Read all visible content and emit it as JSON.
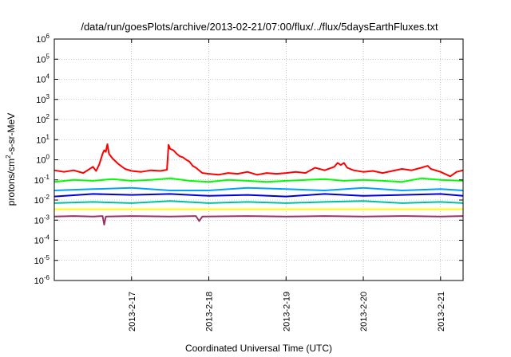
{
  "chart_data": {
    "type": "line",
    "title": "/data/run/goesPlots/archive/2013-02-21/07:00/flux/../flux/5daysEarthFluxes.txt",
    "xlabel": "Coordinated Universal Time (UTC)",
    "ylabel": {
      "pre": "protons/cm",
      "sup": "2",
      "post": "-s-sr-MeV"
    },
    "y_scale": "log",
    "ylim": [
      1e-06,
      1000000.0
    ],
    "y_ticks": [
      {
        "value": 1e-06,
        "base": "10",
        "exp": "-6"
      },
      {
        "value": 1e-05,
        "base": "10",
        "exp": "-5"
      },
      {
        "value": 0.0001,
        "base": "10",
        "exp": "-4"
      },
      {
        "value": 0.001,
        "base": "10",
        "exp": "-3"
      },
      {
        "value": 0.01,
        "base": "10",
        "exp": "-2"
      },
      {
        "value": 0.1,
        "base": "10",
        "exp": "-1"
      },
      {
        "value": 1.0,
        "base": "10",
        "exp": "0"
      },
      {
        "value": 10.0,
        "base": "10",
        "exp": "1"
      },
      {
        "value": 100.0,
        "base": "10",
        "exp": "2"
      },
      {
        "value": 1000.0,
        "base": "10",
        "exp": "3"
      },
      {
        "value": 10000.0,
        "base": "10",
        "exp": "4"
      },
      {
        "value": 100000.0,
        "base": "10",
        "exp": "5"
      },
      {
        "value": 1000000.0,
        "base": "10",
        "exp": "6"
      }
    ],
    "xlim": [
      "2013-02-16T00:00",
      "2013-02-21T07:00"
    ],
    "x_ticks": [
      {
        "value": "2013-02-17T00:00",
        "label": "2013-2-17"
      },
      {
        "value": "2013-02-18T00:00",
        "label": "2013-2-18"
      },
      {
        "value": "2013-02-19T00:00",
        "label": "2013-2-19"
      },
      {
        "value": "2013-02-20T00:00",
        "label": "2013-2-20"
      },
      {
        "value": "2013-02-21T00:00",
        "label": "2013-2-21"
      }
    ],
    "grid": true,
    "series": [
      {
        "color": "#ff0000",
        "values": [
          [
            "2013-02-16T00:00",
            0.3
          ],
          [
            "2013-02-16T03:00",
            0.25
          ],
          [
            "2013-02-16T06:00",
            0.3
          ],
          [
            "2013-02-16T09:00",
            0.22
          ],
          [
            "2013-02-16T12:00",
            0.45
          ],
          [
            "2013-02-16T13:00",
            0.28
          ],
          [
            "2013-02-16T14:00",
            0.6
          ],
          [
            "2013-02-16T15:00",
            2.0
          ],
          [
            "2013-02-16T15:30",
            3.0
          ],
          [
            "2013-02-16T16:00",
            2.5
          ],
          [
            "2013-02-16T16:30",
            6.0
          ],
          [
            "2013-02-16T17:00",
            2.0
          ],
          [
            "2013-02-16T18:00",
            1.2
          ],
          [
            "2013-02-16T20:00",
            0.6
          ],
          [
            "2013-02-16T22:00",
            0.35
          ],
          [
            "2013-02-17T00:00",
            0.28
          ],
          [
            "2013-02-17T03:00",
            0.25
          ],
          [
            "2013-02-17T06:00",
            0.3
          ],
          [
            "2013-02-17T09:00",
            0.28
          ],
          [
            "2013-02-17T11:00",
            0.32
          ],
          [
            "2013-02-17T11:30",
            5.5
          ],
          [
            "2013-02-17T12:00",
            3.5
          ],
          [
            "2013-02-17T13:00",
            3.0
          ],
          [
            "2013-02-17T14:00",
            2.0
          ],
          [
            "2013-02-17T15:00",
            1.5
          ],
          [
            "2013-02-17T16:00",
            1.3
          ],
          [
            "2013-02-17T17:00",
            1.0
          ],
          [
            "2013-02-17T18:00",
            0.8
          ],
          [
            "2013-02-17T19:00",
            0.5
          ],
          [
            "2013-02-17T20:00",
            0.4
          ],
          [
            "2013-02-17T22:00",
            0.22
          ],
          [
            "2013-02-18T00:00",
            0.2
          ],
          [
            "2013-02-18T03:00",
            0.18
          ],
          [
            "2013-02-18T06:00",
            0.22
          ],
          [
            "2013-02-18T09:00",
            0.2
          ],
          [
            "2013-02-18T12:00",
            0.25
          ],
          [
            "2013-02-18T15:00",
            0.18
          ],
          [
            "2013-02-18T18:00",
            0.22
          ],
          [
            "2013-02-18T21:00",
            0.2
          ],
          [
            "2013-02-19T00:00",
            0.22
          ],
          [
            "2013-02-19T03:00",
            0.25
          ],
          [
            "2013-02-19T06:00",
            0.22
          ],
          [
            "2013-02-19T09:00",
            0.4
          ],
          [
            "2013-02-19T12:00",
            0.3
          ],
          [
            "2013-02-19T15:00",
            0.45
          ],
          [
            "2013-02-19T16:00",
            0.7
          ],
          [
            "2013-02-19T17:00",
            0.55
          ],
          [
            "2013-02-19T18:00",
            0.7
          ],
          [
            "2013-02-19T19:00",
            0.4
          ],
          [
            "2013-02-19T21:00",
            0.3
          ],
          [
            "2013-02-20T00:00",
            0.25
          ],
          [
            "2013-02-20T03:00",
            0.28
          ],
          [
            "2013-02-20T06:00",
            0.22
          ],
          [
            "2013-02-20T09:00",
            0.28
          ],
          [
            "2013-02-20T12:00",
            0.35
          ],
          [
            "2013-02-20T15:00",
            0.3
          ],
          [
            "2013-02-20T18:00",
            0.4
          ],
          [
            "2013-02-20T20:00",
            0.5
          ],
          [
            "2013-02-20T21:00",
            0.35
          ],
          [
            "2013-02-21T00:00",
            0.25
          ],
          [
            "2013-02-21T03:00",
            0.15
          ],
          [
            "2013-02-21T05:00",
            0.25
          ],
          [
            "2013-02-21T07:00",
            0.3
          ]
        ]
      },
      {
        "color": "#00ff00",
        "values": [
          [
            "2013-02-16T00:00",
            0.08
          ],
          [
            "2013-02-16T06:00",
            0.1
          ],
          [
            "2013-02-16T12:00",
            0.09
          ],
          [
            "2013-02-16T18:00",
            0.11
          ],
          [
            "2013-02-17T00:00",
            0.09
          ],
          [
            "2013-02-17T06:00",
            0.1
          ],
          [
            "2013-02-17T12:00",
            0.12
          ],
          [
            "2013-02-17T18:00",
            0.09
          ],
          [
            "2013-02-18T00:00",
            0.08
          ],
          [
            "2013-02-18T06:00",
            0.1
          ],
          [
            "2013-02-18T12:00",
            0.09
          ],
          [
            "2013-02-18T18:00",
            0.08
          ],
          [
            "2013-02-19T00:00",
            0.09
          ],
          [
            "2013-02-19T06:00",
            0.1
          ],
          [
            "2013-02-19T12:00",
            0.11
          ],
          [
            "2013-02-19T18:00",
            0.09
          ],
          [
            "2013-02-20T00:00",
            0.1
          ],
          [
            "2013-02-20T06:00",
            0.09
          ],
          [
            "2013-02-20T12:00",
            0.08
          ],
          [
            "2013-02-20T18:00",
            0.12
          ],
          [
            "2013-02-21T00:00",
            0.1
          ],
          [
            "2013-02-21T07:00",
            0.09
          ]
        ]
      },
      {
        "color": "#00a0ff",
        "values": [
          [
            "2013-02-16T00:00",
            0.03
          ],
          [
            "2013-02-16T12:00",
            0.035
          ],
          [
            "2013-02-17T00:00",
            0.04
          ],
          [
            "2013-02-17T12:00",
            0.03
          ],
          [
            "2013-02-18T00:00",
            0.03
          ],
          [
            "2013-02-18T12:00",
            0.04
          ],
          [
            "2013-02-19T00:00",
            0.035
          ],
          [
            "2013-02-19T12:00",
            0.03
          ],
          [
            "2013-02-20T00:00",
            0.04
          ],
          [
            "2013-02-20T12:00",
            0.03
          ],
          [
            "2013-02-21T00:00",
            0.035
          ],
          [
            "2013-02-21T07:00",
            0.03
          ]
        ]
      },
      {
        "color": "#0000dd",
        "values": [
          [
            "2013-02-16T00:00",
            0.015
          ],
          [
            "2013-02-16T12:00",
            0.02
          ],
          [
            "2013-02-17T00:00",
            0.018
          ],
          [
            "2013-02-17T12:00",
            0.02
          ],
          [
            "2013-02-18T00:00",
            0.016
          ],
          [
            "2013-02-18T12:00",
            0.018
          ],
          [
            "2013-02-19T00:00",
            0.015
          ],
          [
            "2013-02-19T12:00",
            0.02
          ],
          [
            "2013-02-20T00:00",
            0.016
          ],
          [
            "2013-02-20T12:00",
            0.018
          ],
          [
            "2013-02-21T00:00",
            0.02
          ],
          [
            "2013-02-21T07:00",
            0.016
          ]
        ]
      },
      {
        "color": "#00c0a0",
        "values": [
          [
            "2013-02-16T00:00",
            0.007
          ],
          [
            "2013-02-16T12:00",
            0.008
          ],
          [
            "2013-02-17T00:00",
            0.007
          ],
          [
            "2013-02-17T12:00",
            0.009
          ],
          [
            "2013-02-18T00:00",
            0.007
          ],
          [
            "2013-02-18T12:00",
            0.008
          ],
          [
            "2013-02-19T00:00",
            0.007
          ],
          [
            "2013-02-19T12:00",
            0.008
          ],
          [
            "2013-02-20T00:00",
            0.009
          ],
          [
            "2013-02-20T12:00",
            0.007
          ],
          [
            "2013-02-21T00:00",
            0.008
          ],
          [
            "2013-02-21T07:00",
            0.007
          ]
        ]
      },
      {
        "color": "#ffff00",
        "values": [
          [
            "2013-02-16T00:00",
            0.0035
          ],
          [
            "2013-02-17T00:00",
            0.0035
          ],
          [
            "2013-02-18T00:00",
            0.0035
          ],
          [
            "2013-02-19T00:00",
            0.0035
          ],
          [
            "2013-02-20T00:00",
            0.0035
          ],
          [
            "2013-02-21T00:00",
            0.0035
          ],
          [
            "2013-02-21T07:00",
            0.0035
          ]
        ]
      },
      {
        "color": "#993366",
        "values": [
          [
            "2013-02-16T00:00",
            0.0015
          ],
          [
            "2013-02-16T06:00",
            0.0016
          ],
          [
            "2013-02-16T12:00",
            0.0015
          ],
          [
            "2013-02-16T15:00",
            0.0016
          ],
          [
            "2013-02-16T15:30",
            0.0006
          ],
          [
            "2013-02-16T16:00",
            0.0015
          ],
          [
            "2013-02-17T00:00",
            0.0016
          ],
          [
            "2013-02-17T12:00",
            0.0015
          ],
          [
            "2013-02-17T20:00",
            0.0016
          ],
          [
            "2013-02-17T21:00",
            0.0009
          ],
          [
            "2013-02-17T22:00",
            0.0015
          ],
          [
            "2013-02-18T12:00",
            0.0016
          ],
          [
            "2013-02-19T00:00",
            0.0015
          ],
          [
            "2013-02-19T12:00",
            0.0016
          ],
          [
            "2013-02-20T00:00",
            0.0015
          ],
          [
            "2013-02-20T12:00",
            0.0016
          ],
          [
            "2013-02-21T00:00",
            0.0015
          ],
          [
            "2013-02-21T07:00",
            0.0016
          ]
        ]
      }
    ]
  }
}
